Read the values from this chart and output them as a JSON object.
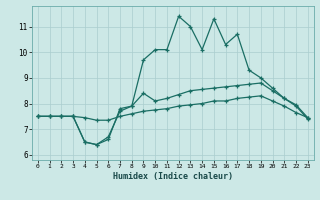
{
  "xlabel": "Humidex (Indice chaleur)",
  "xlim": [
    -0.5,
    23.5
  ],
  "ylim": [
    5.8,
    11.8
  ],
  "yticks": [
    6,
    7,
    8,
    9,
    10,
    11
  ],
  "xticks": [
    0,
    1,
    2,
    3,
    4,
    5,
    6,
    7,
    8,
    9,
    10,
    11,
    12,
    13,
    14,
    15,
    16,
    17,
    18,
    19,
    20,
    21,
    22,
    23
  ],
  "bg_color": "#cce8e6",
  "grid_color": "#aacece",
  "line_color": "#1a6e64",
  "lines": [
    [
      7.5,
      7.5,
      7.5,
      7.5,
      6.5,
      6.4,
      6.6,
      7.8,
      7.9,
      9.7,
      10.1,
      10.1,
      11.4,
      11.0,
      10.1,
      11.3,
      10.3,
      10.7,
      9.3,
      9.0,
      8.6,
      8.2,
      7.9,
      7.4
    ],
    [
      7.5,
      7.5,
      7.5,
      7.5,
      6.5,
      6.4,
      6.7,
      7.7,
      7.9,
      8.4,
      8.1,
      8.2,
      8.35,
      8.5,
      8.55,
      8.6,
      8.65,
      8.7,
      8.75,
      8.8,
      8.5,
      8.2,
      7.95,
      7.45
    ],
    [
      7.5,
      7.5,
      7.5,
      7.5,
      7.45,
      7.35,
      7.35,
      7.5,
      7.6,
      7.7,
      7.75,
      7.8,
      7.9,
      7.95,
      8.0,
      8.1,
      8.1,
      8.2,
      8.25,
      8.3,
      8.1,
      7.9,
      7.65,
      7.45
    ]
  ]
}
